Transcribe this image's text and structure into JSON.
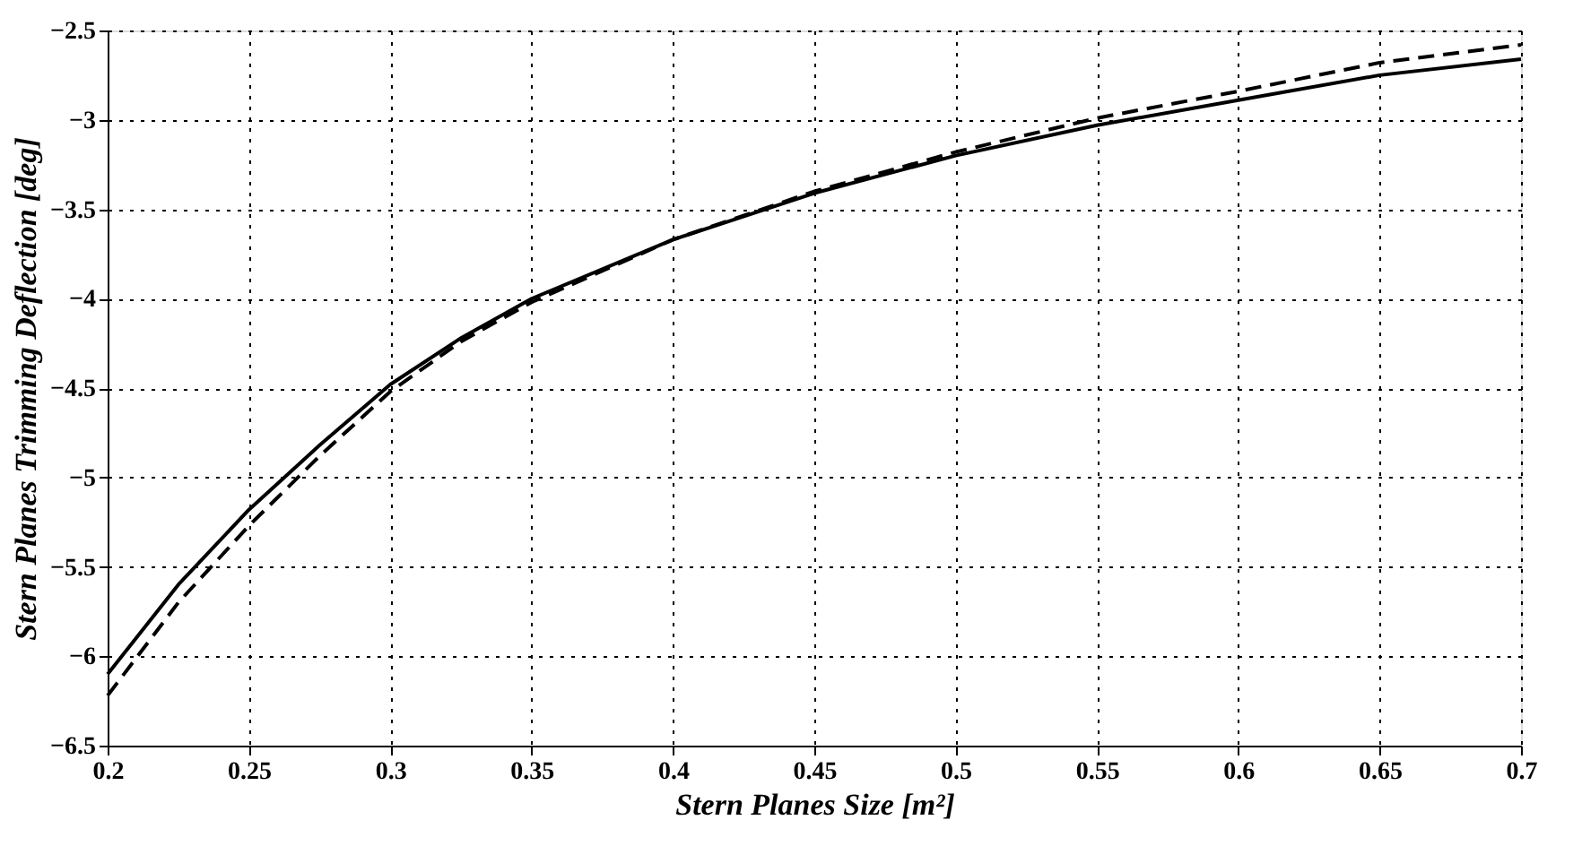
{
  "chart_data": {
    "type": "line",
    "xlabel": "Stern Planes Size [m²]",
    "ylabel": "Stern Planes Trimming Deflection [deg]",
    "x": [
      0.2,
      0.225,
      0.25,
      0.275,
      0.3,
      0.325,
      0.35,
      0.4,
      0.45,
      0.5,
      0.55,
      0.6,
      0.65,
      0.7
    ],
    "series": [
      {
        "color": "#000000",
        "line_style": "solid",
        "values": [
          -6.1,
          -5.6,
          -5.18,
          -4.82,
          -4.48,
          -4.22,
          -4.0,
          -3.67,
          -3.41,
          -3.2,
          -3.03,
          -2.89,
          -2.75,
          -2.66
        ]
      },
      {
        "color": "#000000",
        "line_style": "dashed",
        "values": [
          -6.22,
          -5.7,
          -5.27,
          -4.88,
          -4.52,
          -4.24,
          -4.02,
          -3.67,
          -3.4,
          -3.18,
          -2.99,
          -2.84,
          -2.68,
          -2.58
        ]
      }
    ],
    "xlim": [
      0.2,
      0.7
    ],
    "xticks": [
      0.2,
      0.25,
      0.3,
      0.35,
      0.4,
      0.45,
      0.5,
      0.55,
      0.6,
      0.65,
      0.7
    ],
    "ylim": [
      -6.5,
      -2.5
    ],
    "yticks": [
      -6.5,
      -6,
      -5.5,
      -5,
      -4.5,
      -4,
      -3.5,
      -3,
      -2.5
    ],
    "grid": true,
    "marker": "none"
  }
}
